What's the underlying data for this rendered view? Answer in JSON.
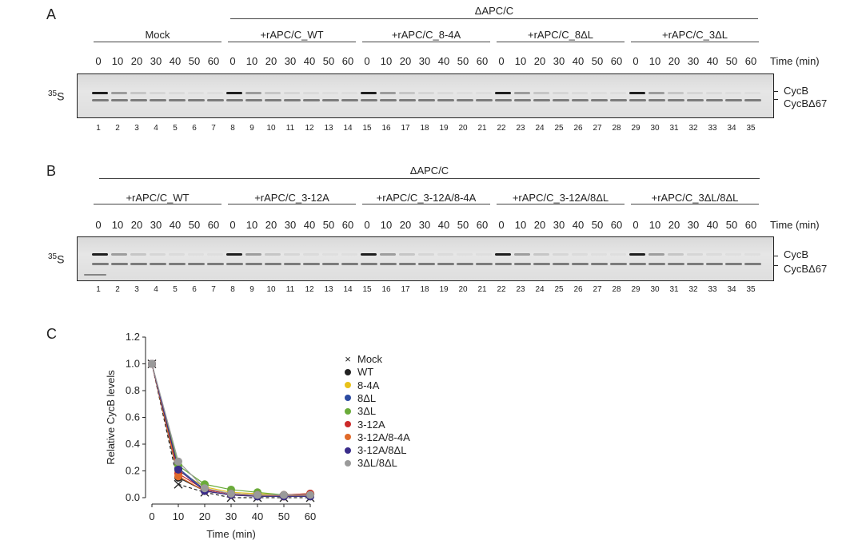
{
  "panelA": {
    "letter": "A",
    "top_label": "ΔAPC/C",
    "groups": [
      "Mock",
      "+rAPC/C_WT",
      "+rAPC/C_8-4A",
      "+rAPC/C_8ΔL",
      "+rAPC/C_3ΔL"
    ],
    "times": [
      "0",
      "10",
      "20",
      "30",
      "40",
      "50",
      "60"
    ],
    "time_unit": "Time (min)",
    "lanes": [
      "1",
      "2",
      "3",
      "4",
      "5",
      "6",
      "7",
      "8",
      "9",
      "10",
      "11",
      "12",
      "13",
      "14",
      "15",
      "16",
      "17",
      "18",
      "19",
      "20",
      "21",
      "22",
      "23",
      "24",
      "25",
      "26",
      "27",
      "28",
      "29",
      "30",
      "31",
      "32",
      "33",
      "34",
      "35"
    ],
    "isotope_sup": "35",
    "isotope": "S",
    "bands": [
      "CycB",
      "CycBΔ67"
    ]
  },
  "panelB": {
    "letter": "B",
    "top_label": "ΔAPC/C",
    "groups": [
      "+rAPC/C_WT",
      "+rAPC/C_3-12A",
      "+rAPC/C_3-12A/8-4A",
      "+rAPC/C_3-12A/8ΔL",
      "+rAPC/C_3ΔL/8ΔL"
    ],
    "times": [
      "0",
      "10",
      "20",
      "30",
      "40",
      "50",
      "60"
    ],
    "time_unit": "Time (min)",
    "lanes": [
      "1",
      "2",
      "3",
      "4",
      "5",
      "6",
      "7",
      "8",
      "9",
      "10",
      "11",
      "12",
      "13",
      "14",
      "15",
      "16",
      "17",
      "18",
      "19",
      "20",
      "21",
      "22",
      "23",
      "24",
      "25",
      "26",
      "27",
      "28",
      "29",
      "30",
      "31",
      "32",
      "33",
      "34",
      "35"
    ],
    "isotope_sup": "35",
    "isotope": "S",
    "bands": [
      "CycB",
      "CycBΔ67"
    ]
  },
  "panelC": {
    "letter": "C"
  },
  "chart_data": {
    "type": "line",
    "xlabel": "Time (min)",
    "ylabel": "Relative CycB levels",
    "x": [
      0,
      10,
      20,
      30,
      40,
      50,
      60
    ],
    "xlim": [
      0,
      60
    ],
    "ylim": [
      0,
      1.2
    ],
    "xticks": [
      "0",
      "10",
      "20",
      "30",
      "40",
      "50",
      "60"
    ],
    "yticks": [
      "0.0",
      "0.2",
      "0.4",
      "0.6",
      "0.8",
      "1.0",
      "1.2"
    ],
    "grid": false,
    "legend_position": "right",
    "series": [
      {
        "name": "Mock",
        "color": "#222222",
        "marker": "x",
        "dashed": true,
        "values": [
          1.0,
          0.1,
          0.04,
          0.0,
          0.0,
          0.0,
          0.0
        ]
      },
      {
        "name": "WT",
        "color": "#222222",
        "marker": "dot",
        "values": [
          1.0,
          0.15,
          0.05,
          0.02,
          0.01,
          0.01,
          0.01
        ]
      },
      {
        "name": "8-4A",
        "color": "#e8c21a",
        "marker": "dot",
        "values": [
          1.0,
          0.2,
          0.08,
          0.04,
          0.03,
          0.02,
          0.02
        ]
      },
      {
        "name": "8ΔL",
        "color": "#2b4aa0",
        "marker": "dot",
        "values": [
          1.0,
          0.22,
          0.06,
          0.03,
          0.02,
          0.02,
          0.02
        ]
      },
      {
        "name": "3ΔL",
        "color": "#6aab3a",
        "marker": "dot",
        "values": [
          1.0,
          0.24,
          0.1,
          0.06,
          0.04,
          0.02,
          0.03
        ]
      },
      {
        "name": "3-12A",
        "color": "#cc2a2a",
        "marker": "dot",
        "values": [
          1.0,
          0.18,
          0.06,
          0.03,
          0.02,
          0.02,
          0.03
        ]
      },
      {
        "name": "3-12A/8-4A",
        "color": "#e06a2a",
        "marker": "dot",
        "values": [
          1.0,
          0.16,
          0.05,
          0.02,
          0.02,
          0.01,
          0.02
        ]
      },
      {
        "name": "3-12A/8ΔL",
        "color": "#3a2c8a",
        "marker": "dot",
        "values": [
          1.0,
          0.21,
          0.05,
          0.02,
          0.01,
          0.01,
          0.01
        ]
      },
      {
        "name": "3ΔL/8ΔL",
        "color": "#9a9a9a",
        "marker": "dot",
        "values": [
          1.0,
          0.27,
          0.07,
          0.03,
          0.02,
          0.02,
          0.02
        ]
      }
    ]
  }
}
